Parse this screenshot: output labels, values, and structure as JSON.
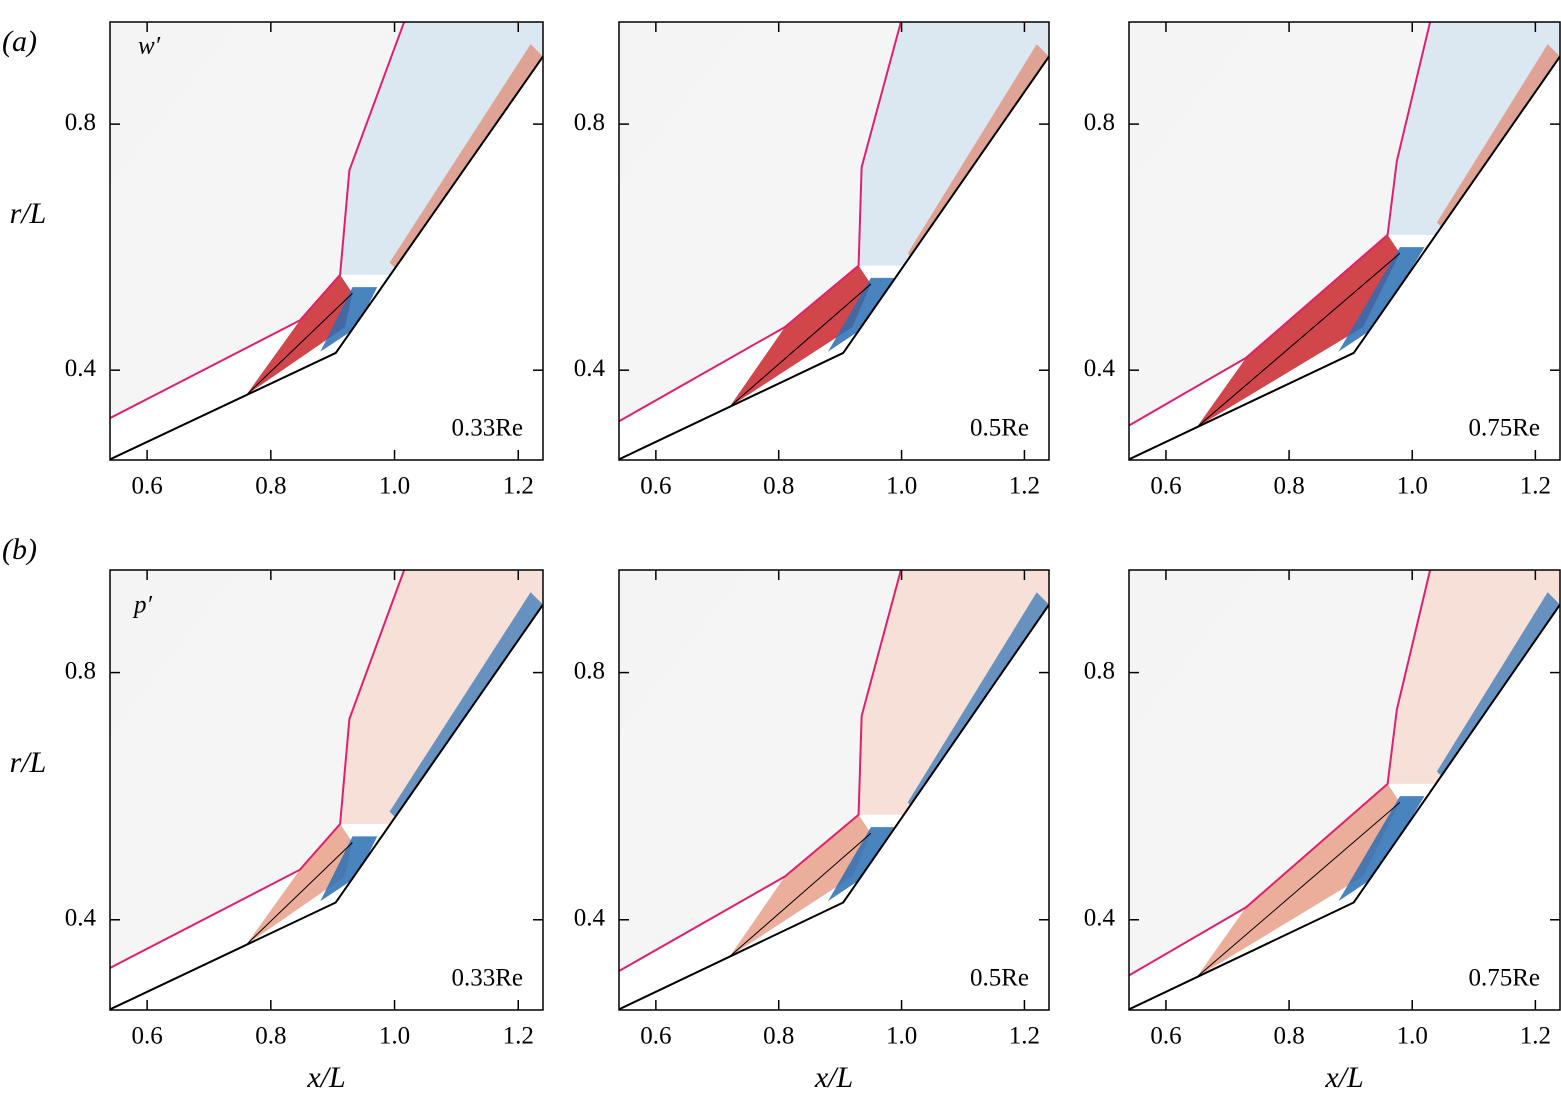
{
  "row_labels": [
    "(a)",
    "(b)"
  ],
  "field_labels": [
    "w′",
    "p′"
  ],
  "chart_data": [
    {
      "type": "contour",
      "label": "0.33Re",
      "xlim": [
        0.54,
        1.24
      ],
      "ylim": [
        0.254,
        0.966
      ],
      "xticks": [
        0.6,
        0.8,
        {
          "value": 1,
          "label": "1.0"
        },
        1.2
      ],
      "yticks": [
        0.4,
        0.8
      ],
      "ylabel": "r/L"
    },
    {
      "type": "contour",
      "label": "0.5Re",
      "xlim": [
        0.54,
        1.24
      ],
      "ylim": [
        0.254,
        0.966
      ],
      "xticks": [
        0.6,
        0.8,
        {
          "value": 1,
          "label": "1.0"
        },
        1.2
      ],
      "yticks": [
        0.4,
        0.8
      ]
    },
    {
      "type": "contour",
      "label": "0.75Re",
      "xlim": [
        0.54,
        1.24
      ],
      "ylim": [
        0.254,
        0.966
      ],
      "xticks": [
        0.6,
        0.8,
        {
          "value": 1,
          "label": "1.0"
        },
        1.2
      ],
      "yticks": [
        0.4,
        0.8
      ]
    },
    {
      "type": "contour",
      "label": "0.33Re",
      "xlim": [
        0.54,
        1.24
      ],
      "ylim": [
        0.254,
        0.966
      ],
      "xticks": [
        0.6,
        0.8,
        {
          "value": 1,
          "label": "1.0"
        },
        1.2
      ],
      "yticks": [
        0.4,
        0.8
      ],
      "xlabel": "x/L",
      "ylabel": "r/L"
    },
    {
      "type": "contour",
      "label": "0.5Re",
      "xlim": [
        0.54,
        1.24
      ],
      "ylim": [
        0.254,
        0.966
      ],
      "xticks": [
        0.6,
        0.8,
        {
          "value": 1,
          "label": "1.0"
        },
        1.2
      ],
      "yticks": [
        0.4,
        0.8
      ],
      "xlabel": "x/L"
    },
    {
      "type": "contour",
      "label": "0.75Re",
      "xlim": [
        0.54,
        1.24
      ],
      "ylim": [
        0.254,
        0.966
      ],
      "xticks": [
        0.6,
        0.8,
        {
          "value": 1,
          "label": "1.0"
        },
        1.2
      ],
      "yticks": [
        0.4,
        0.8
      ],
      "xlabel": "x/L"
    }
  ]
}
